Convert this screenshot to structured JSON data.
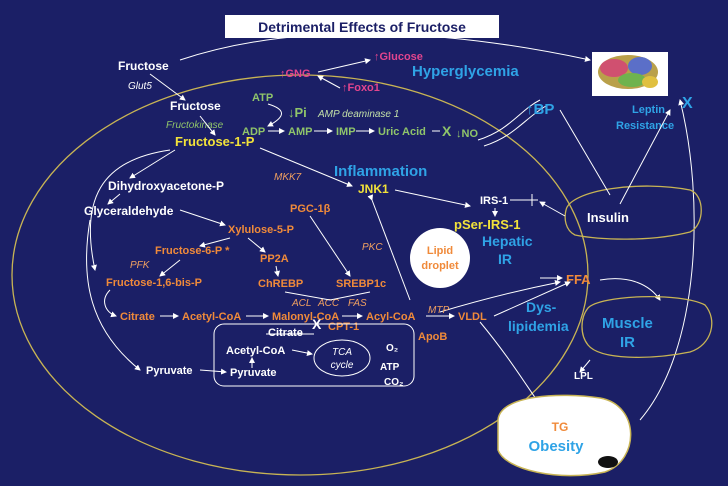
{
  "title": "Detrimental Effects of Fructose",
  "nodes": {
    "fructose_top": "Fructose",
    "glut5": "Glut5",
    "fructose": "Fructose",
    "fructokinase": "Fructokinase",
    "f1p": "Fructose-1-P",
    "atp": "ATP",
    "adp": "ADP",
    "amp": "AMP",
    "imp": "IMP",
    "uric_acid": "Uric Acid",
    "pi": "Pi",
    "amp_deaminase": "AMP deaminase 1",
    "gng": "GNG",
    "glucose": "Glucose",
    "foxo1": "Foxo1",
    "hyperglycemia": "Hyperglycemia",
    "no": "NO",
    "bp": "BP",
    "leptin_resistance_1": "Leptin",
    "leptin_resistance_2": "Resistance",
    "mkk7": "MKK7",
    "inflammation": "Inflammation",
    "jnk1": "JNK1",
    "dhap": "Dihydroxyacetone-P",
    "glyceraldehyde": "Glyceraldehyde",
    "pgc1b": "PGC-1β",
    "xylulose5p": "Xylulose-5-P",
    "f6p": "Fructose-6-P *",
    "pfk": "PFK",
    "f16bp": "Fructose-1,6-bis-P",
    "pp2a": "PP2A",
    "chrebp": "ChREBP",
    "srebp1c": "SREBP1c",
    "pkc": "PKC",
    "acl": "ACL",
    "acc": "ACC",
    "fas": "FAS",
    "lipid_droplet_1": "Lipid",
    "lipid_droplet_2": "droplet",
    "irs1": "IRS-1",
    "pser_irs1": "pSer-IRS-1",
    "hepatic_ir_1": "Hepatic",
    "hepatic_ir_2": "IR",
    "insulin": "Insulin",
    "ffa": "FFA",
    "dyslipidemia_1": "Dys-",
    "dyslipidemia_2": "lipidemia",
    "muscle_ir_1": "Muscle",
    "muscle_ir_2": "IR",
    "citrate": "Citrate",
    "acetyl_coa": "Acetyl-CoA",
    "malonyl_coa": "Malonyl-CoA",
    "acyl_coa": "Acyl-CoA",
    "mtp": "MTP",
    "vldl": "VLDL",
    "apob": "ApoB",
    "cpt1": "CPT-1",
    "citrate_mito": "Citrate",
    "acetyl_coa_mito": "Acetyl-CoA",
    "tca_1": "TCA",
    "tca_2": "cycle",
    "o2": "O₂",
    "atp_mito": "ATP",
    "co2": "CO₂",
    "pyruvate": "Pyruvate",
    "pyruvate_mito": "Pyruvate",
    "lpl": "LPL",
    "tg": "TG",
    "obesity": "Obesity"
  },
  "symbols": {
    "up": "↑",
    "down": "↓",
    "x": "X"
  },
  "colors": {
    "background": "#1b1f66",
    "white_text": "#ffffff",
    "orange_text": "#f08a3a",
    "green_text": "#8fc46a",
    "yellow_text": "#f2e23a",
    "blue_text": "#2fa3e6",
    "pink_text": "#e2458e",
    "title_bar": "#ffffff"
  },
  "icons": [
    "brain-icon",
    "liver-outline",
    "pancreas-shape",
    "adipose-cell",
    "mitochondrion"
  ]
}
